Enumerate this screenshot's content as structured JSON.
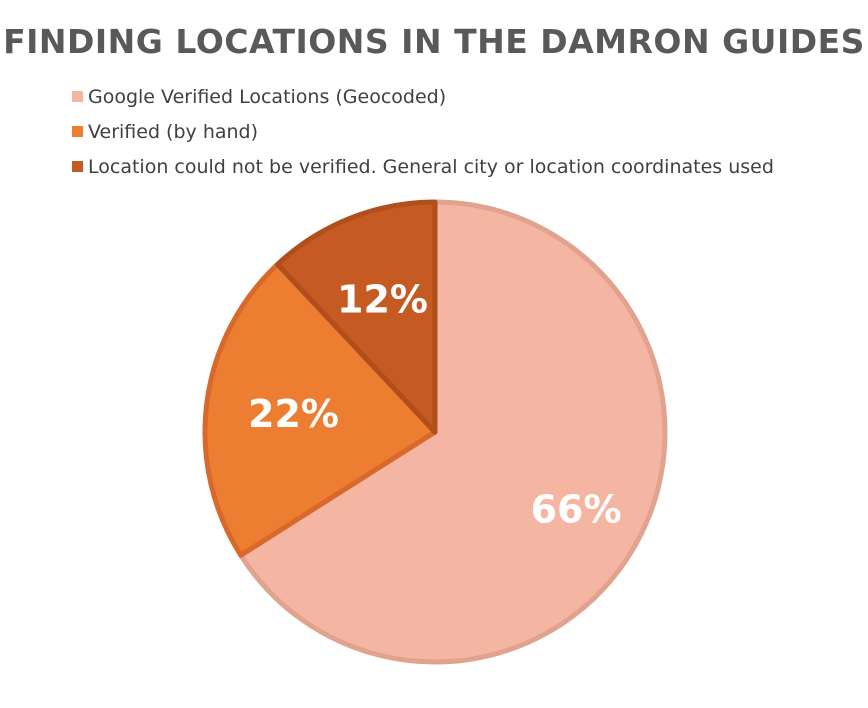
{
  "chart_data": {
    "type": "pie",
    "title": "FINDING LOCATIONS IN THE DAMRON GUIDES",
    "legend_position": "top-left",
    "slices": [
      {
        "name": "Google Verified Locations (Geocoded)",
        "value": 66,
        "label": "66%",
        "color": "#F4B6A2",
        "edge": "#E0A38E"
      },
      {
        "name": "Verified (by hand)",
        "value": 22,
        "label": "22%",
        "color": "#ED7D31",
        "edge": "#D9692B"
      },
      {
        "name": "Location could not be verified. General city or location coordinates used",
        "value": 12,
        "label": "12%",
        "color": "#C55A22",
        "edge": "#B04E1C"
      }
    ]
  }
}
